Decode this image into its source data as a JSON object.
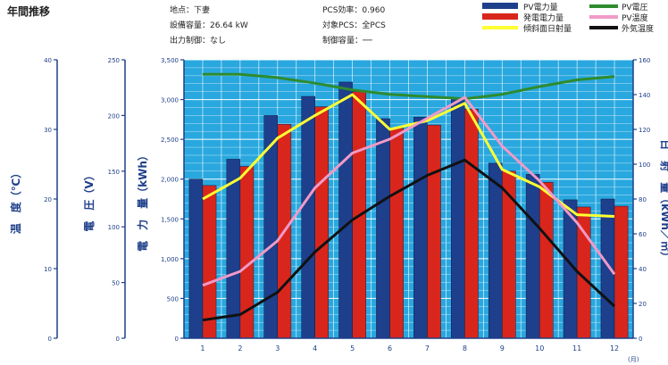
{
  "title": "年間推移",
  "info": {
    "location": "地点：下妻",
    "capacity": "設備容量：26.64 kW",
    "output_limit": "出力制御：なし",
    "pcs_eff": "PCS効率：0.960",
    "target_pcs": "対象PCS：全PCS",
    "limit_cap": "制御容量：──"
  },
  "legend": {
    "pv_energy": "PV電力量",
    "gen_energy": "発電電力量",
    "irradiance": "傾斜面日射量",
    "pv_voltage": "PV電圧",
    "pv_temp": "PV温度",
    "outside_temp": "外気温度"
  },
  "colors": {
    "plot_bg": "#29a8df",
    "grid": "#ffffff",
    "axis": "#1f3f8a",
    "pv_bar": "#1d3f8c",
    "gen_bar": "#d9261c",
    "irradiance": "#ffff33",
    "pv_voltage": "#2e8b2e",
    "pv_temp": "#f09ac8",
    "outside_temp": "#111111"
  },
  "axes": {
    "temp_label": "温　度（℃）",
    "volt_label": "電　圧（V）",
    "energy_label": "電　力　量（kWh）",
    "irr_label": "日　射　量（kWh／㎡）",
    "x_unit": "(月)",
    "temp_ticks": [
      "0",
      "10",
      "20",
      "30",
      "40"
    ],
    "volt_ticks": [
      "0",
      "50",
      "100",
      "150",
      "200",
      "250"
    ],
    "energy_ticks": [
      "0",
      "500",
      "1,000",
      "1,500",
      "2,000",
      "2,500",
      "3,000",
      "3,500"
    ],
    "irr_ticks": [
      "0",
      "20",
      "40",
      "60",
      "80",
      "100",
      "120",
      "140",
      "160"
    ]
  },
  "chart_data": {
    "type": "bar",
    "categories": [
      "1",
      "2",
      "3",
      "4",
      "5",
      "6",
      "7",
      "8",
      "9",
      "10",
      "11",
      "12"
    ],
    "xlabel": "(月)",
    "ylim_energy": [
      0,
      3500
    ],
    "ylim_irradiance": [
      0,
      160
    ],
    "ylim_voltage": [
      0,
      250
    ],
    "ylim_temperature": [
      0,
      40
    ],
    "grid": true,
    "legend_position": "top-right",
    "series": [
      {
        "name": "PV電力量",
        "type": "bar",
        "axis": "energy",
        "values": [
          2000,
          2250,
          2800,
          3040,
          3220,
          2760,
          2780,
          3010,
          2200,
          2060,
          1740,
          1750
        ]
      },
      {
        "name": "発電電力量",
        "type": "bar",
        "axis": "energy",
        "values": [
          1920,
          2160,
          2690,
          2910,
          3100,
          2640,
          2680,
          2880,
          2100,
          1960,
          1650,
          1660
        ]
      },
      {
        "name": "傾斜面日射量",
        "type": "line",
        "axis": "irradiance",
        "values": [
          80,
          92,
          115,
          128,
          140,
          120,
          125,
          135,
          97,
          87,
          71,
          70
        ]
      },
      {
        "name": "PV電圧",
        "type": "line",
        "axis": "voltage",
        "values": [
          237,
          237,
          234,
          229,
          223,
          219,
          217,
          215,
          219,
          226,
          232,
          235
        ]
      },
      {
        "name": "PV温度",
        "type": "line",
        "axis": "temperature",
        "values": [
          7.6,
          9.6,
          14,
          21.6,
          26.6,
          28.6,
          31.6,
          34.6,
          27.6,
          22.6,
          16.6,
          9.2
        ]
      },
      {
        "name": "外気温度",
        "type": "line",
        "axis": "temperature",
        "values": [
          2.6,
          3.4,
          6.6,
          12.4,
          17,
          20.4,
          23.4,
          25.6,
          21.6,
          15.8,
          9.6,
          4.6
        ]
      }
    ]
  }
}
